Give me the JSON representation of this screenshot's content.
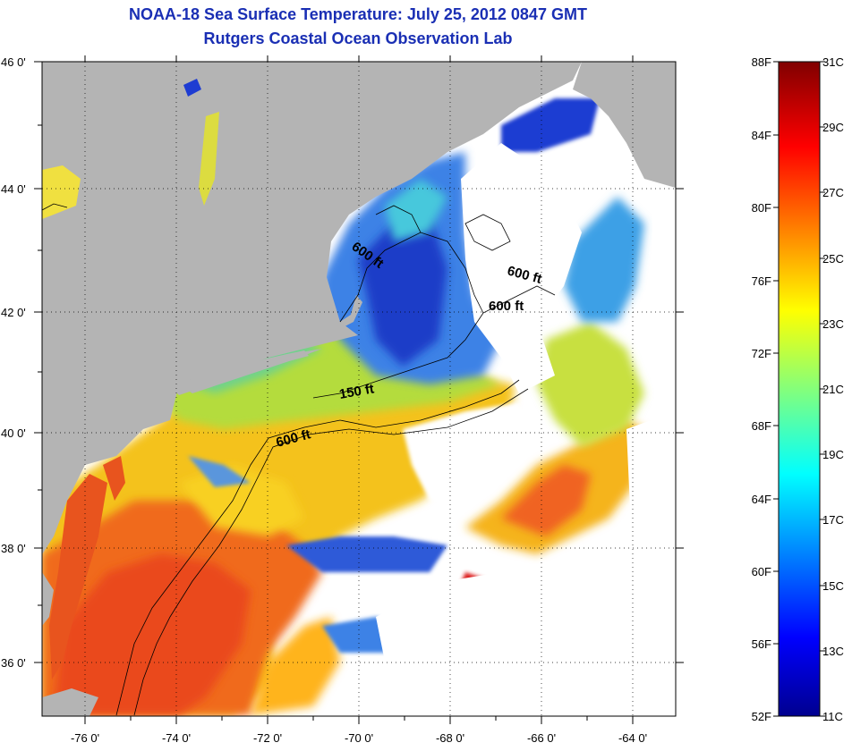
{
  "header": {
    "title": "NOAA-18 Sea Surface Temperature:  July 25, 2012 0847 GMT",
    "subtitle": "Rutgers Coastal Ocean Observation Lab"
  },
  "map": {
    "lon_ticks": [
      "-76 0'",
      "-74 0'",
      "-72 0'",
      "-70 0'",
      "-68 0'",
      "-66 0'",
      "-64 0'"
    ],
    "lat_ticks": [
      "46 0'",
      "44 0'",
      "42 0'",
      "40 0'",
      "38 0'",
      "36 0'"
    ],
    "contour_labels": [
      "600 ft",
      "600 ft",
      "600 ft",
      "150 ft",
      "600 ft"
    ],
    "colors": {
      "land": "#b4b4b4",
      "clouds": "#ffffff",
      "ocean_warm": "#f05a1e",
      "ocean_cool": "#1e50dc"
    }
  },
  "colorbar": {
    "fahrenheit": [
      "88F",
      "84F",
      "80F",
      "76F",
      "72F",
      "68F",
      "64F",
      "60F",
      "56F",
      "52F"
    ],
    "celsius": [
      "31C",
      "29C",
      "27C",
      "25C",
      "23C",
      "21C",
      "19C",
      "17C",
      "15C",
      "13C",
      "11C"
    ]
  }
}
